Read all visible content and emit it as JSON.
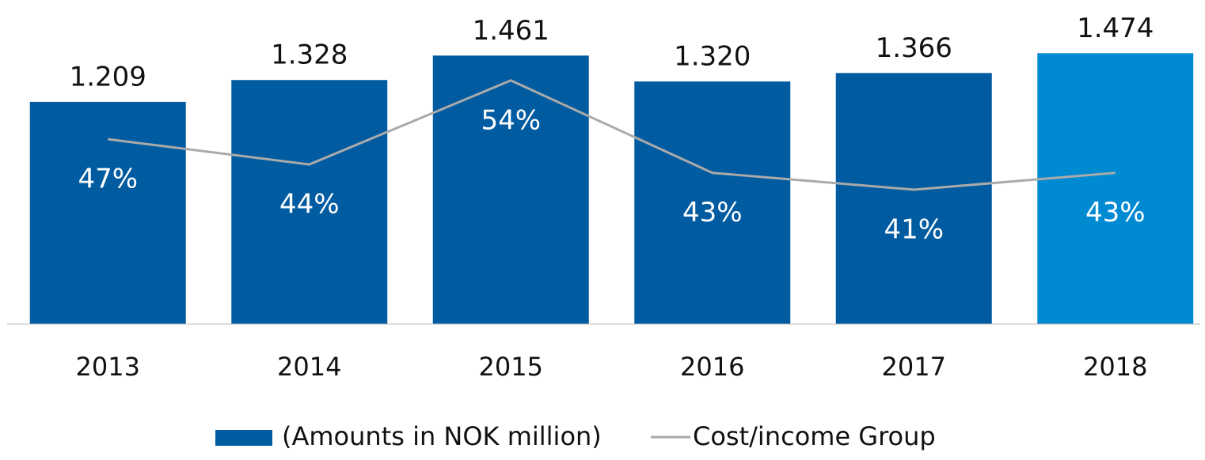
{
  "chart_data": {
    "type": "bar-line",
    "categories": [
      "2013",
      "2014",
      "2015",
      "2016",
      "2017",
      "2018"
    ],
    "ylim": [
      0,
      1600
    ],
    "y2lim": [
      25,
      60
    ],
    "series": [
      {
        "name": "(Amounts in NOK million)",
        "type": "bar",
        "color": "#005ba1",
        "colors": [
          "#005ba1",
          "#005ba1",
          "#005ba1",
          "#005ba1",
          "#005ba1",
          "#008ad2"
        ],
        "values": [
          1209,
          1328,
          1461,
          1320,
          1366,
          1474
        ],
        "value_labels": [
          "1.209",
          "1.328",
          "1.461",
          "1.320",
          "1.366",
          "1.474"
        ]
      },
      {
        "name": "Cost/income Group",
        "type": "line",
        "axis": "y2",
        "color": "#aaaaaa",
        "values": [
          47,
          44,
          54,
          43,
          41,
          43
        ],
        "value_labels": [
          "47%",
          "44%",
          "54%",
          "43%",
          "41%",
          "43%"
        ]
      }
    ],
    "legend": "bottom"
  }
}
